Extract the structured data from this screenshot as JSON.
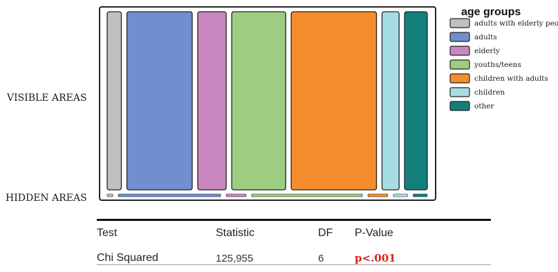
{
  "chart_data": {
    "type": "mosaic",
    "rows": [
      "VISIBLE AREAS",
      "HIDDEN AREAS"
    ],
    "legend_title": "age groups",
    "categories": [
      {
        "label": "adults with elderly people",
        "color": "#c0c0c0",
        "visible_share": 0.05,
        "hidden_share": 0.02
      },
      {
        "label": "adults",
        "color": "#6f8fcf",
        "visible_share": 0.23,
        "hidden_share": 0.36
      },
      {
        "label": "elderly",
        "color": "#c987bf",
        "visible_share": 0.1,
        "hidden_share": 0.07
      },
      {
        "label": "youths/teens",
        "color": "#9ccd81",
        "visible_share": 0.19,
        "hidden_share": 0.39
      },
      {
        "label": "children with adults",
        "color": "#f68d2d",
        "visible_share": 0.3,
        "hidden_share": 0.07
      },
      {
        "label": "children",
        "color": "#a6dde5",
        "visible_share": 0.06,
        "hidden_share": 0.05
      },
      {
        "label": "other",
        "color": "#137f7a",
        "visible_share": 0.08,
        "hidden_share": 0.05
      }
    ]
  },
  "stats_table": {
    "headers": {
      "test": "Test",
      "statistic": "Statistic",
      "df": "DF",
      "pvalue": "P-Value"
    },
    "row": {
      "test": "Chi Squared",
      "statistic": "125,955",
      "df": "6",
      "pvalue": "p<.001",
      "pvalue_color": "#e0201b"
    }
  }
}
